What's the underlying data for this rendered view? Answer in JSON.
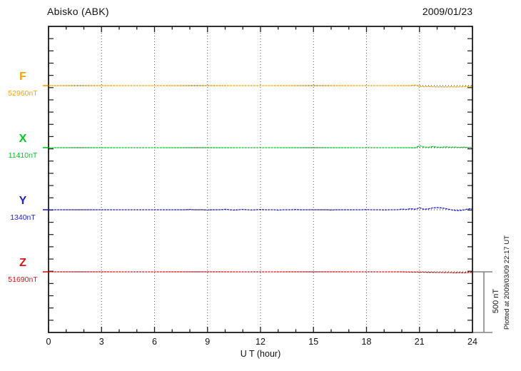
{
  "header": {
    "station_title": "Abisko (ABK)",
    "date": "2009/01/23"
  },
  "axis": {
    "x_label": "U T (hour)",
    "x_ticks": [
      "0",
      "3",
      "6",
      "9",
      "12",
      "15",
      "18",
      "21",
      "24"
    ],
    "x_range": [
      0,
      24
    ],
    "grid_hours": [
      3,
      6,
      9,
      12,
      15,
      18,
      21
    ]
  },
  "scale_bar": {
    "label": "500 nT",
    "span_nT": 500
  },
  "footer_note": "Plotted at 2009/03/09 22:17 UT",
  "colors": {
    "F": "#f5a400",
    "X": "#00cc22",
    "Y": "#2222cc",
    "Z": "#dd1111",
    "frame": "#1a1a1a",
    "grid": "#555555",
    "baseline_dots": "#222222",
    "scale_bar": "#808080"
  },
  "chart_data": {
    "type": "line",
    "title": "Abisko (ABK)",
    "date": "2009/01/23",
    "xlabel": "U T (hour)",
    "x_start_hour": 0,
    "x_step_hours": 0.25,
    "x_range_hours": [
      0,
      24
    ],
    "grid": "vertical-dotted-every-3h",
    "note": "Magnetogram; each trace plotted as deviation (nT) from its baseline value; vertical scale bar = 500 nT",
    "series": [
      {
        "name": "F",
        "label": "F",
        "baseline_nT": 52960,
        "value_label": "52960nT",
        "color": "#f5a400",
        "offsets_nT": [
          0,
          0,
          0,
          0,
          0,
          0,
          0,
          0,
          0,
          0,
          0,
          0,
          0,
          0,
          0,
          0,
          0,
          0,
          0,
          0,
          0,
          0,
          0,
          0,
          0,
          0,
          0,
          0,
          0,
          0,
          0,
          0,
          0,
          0,
          0,
          0,
          0,
          0,
          0,
          0,
          0,
          0,
          0,
          0,
          0,
          0,
          0,
          0,
          0,
          0,
          0,
          0,
          0,
          0,
          0,
          0,
          0,
          0,
          0,
          0,
          0,
          0,
          0,
          0,
          0,
          0,
          0,
          0,
          0,
          0,
          0,
          0,
          0,
          0,
          0,
          0,
          0,
          0,
          0,
          0,
          0,
          0,
          0,
          4,
          -6,
          -9,
          -7,
          -9,
          -11,
          -9,
          -11,
          -9,
          -10,
          -11,
          -9,
          -6,
          -5
        ]
      },
      {
        "name": "X",
        "label": "X",
        "baseline_nT": 11410,
        "value_label": "11410nT",
        "color": "#00cc22",
        "offsets_nT": [
          0,
          0,
          0,
          0,
          0,
          0,
          0,
          0,
          0,
          0,
          0,
          0,
          0,
          0,
          0,
          0,
          0,
          0,
          0,
          0,
          0,
          0,
          0,
          0,
          0,
          0,
          0,
          0,
          0,
          0,
          0,
          0,
          0,
          0,
          0,
          0,
          0,
          0,
          0,
          0,
          0,
          0,
          0,
          0,
          0,
          0,
          0,
          0,
          0,
          0,
          0,
          0,
          0,
          0,
          0,
          0,
          0,
          0,
          0,
          0,
          0,
          0,
          0,
          0,
          0,
          0,
          0,
          0,
          0,
          0,
          0,
          0,
          0,
          0,
          0,
          0,
          0,
          0,
          0,
          0,
          0,
          0,
          0,
          -2,
          16,
          5,
          3,
          9,
          4,
          3,
          7,
          3,
          5,
          2,
          4,
          2,
          3
        ]
      },
      {
        "name": "Y",
        "label": "Y",
        "baseline_nT": 1340,
        "value_label": "1340nT",
        "color": "#2222cc",
        "offsets_nT": [
          0,
          0,
          0,
          0,
          0,
          0,
          0,
          0,
          0,
          0,
          0,
          0,
          0,
          0,
          0,
          0,
          0,
          0,
          0,
          0,
          0,
          0,
          0,
          0,
          0,
          0,
          0,
          0,
          0,
          0,
          0,
          0,
          3,
          0,
          0,
          0,
          -3,
          0,
          0,
          0,
          4,
          0,
          -3,
          0,
          3,
          0,
          -2,
          0,
          2,
          0,
          0,
          0,
          -3,
          0,
          0,
          0,
          2,
          0,
          0,
          0,
          0,
          0,
          0,
          0,
          -2,
          0,
          0,
          0,
          0,
          0,
          0,
          0,
          2,
          0,
          0,
          0,
          -2,
          0,
          0,
          0,
          5,
          2,
          9,
          4,
          16,
          4,
          7,
          15,
          18,
          15,
          9,
          1,
          -5,
          -7,
          -2,
          7,
          10
        ]
      },
      {
        "name": "Z",
        "label": "Z",
        "baseline_nT": 51690,
        "value_label": "51690nT",
        "color": "#dd1111",
        "offsets_nT": [
          0,
          0,
          0,
          0,
          0,
          0,
          0,
          0,
          0,
          0,
          0,
          0,
          0,
          0,
          0,
          0,
          0,
          0,
          0,
          0,
          0,
          0,
          0,
          0,
          0,
          0,
          0,
          0,
          0,
          0,
          0,
          0,
          0,
          0,
          0,
          0,
          0,
          0,
          0,
          0,
          0,
          0,
          0,
          0,
          0,
          0,
          0,
          0,
          0,
          0,
          0,
          0,
          0,
          0,
          0,
          0,
          0,
          0,
          0,
          0,
          0,
          0,
          0,
          0,
          0,
          0,
          0,
          0,
          0,
          0,
          0,
          0,
          0,
          0,
          0,
          0,
          0,
          0,
          0,
          0,
          0,
          -1,
          -2,
          -2,
          -3,
          -3,
          -4,
          -4,
          -5,
          -5,
          -6,
          -6,
          -8,
          -6,
          -8,
          -5,
          -4
        ]
      }
    ]
  }
}
